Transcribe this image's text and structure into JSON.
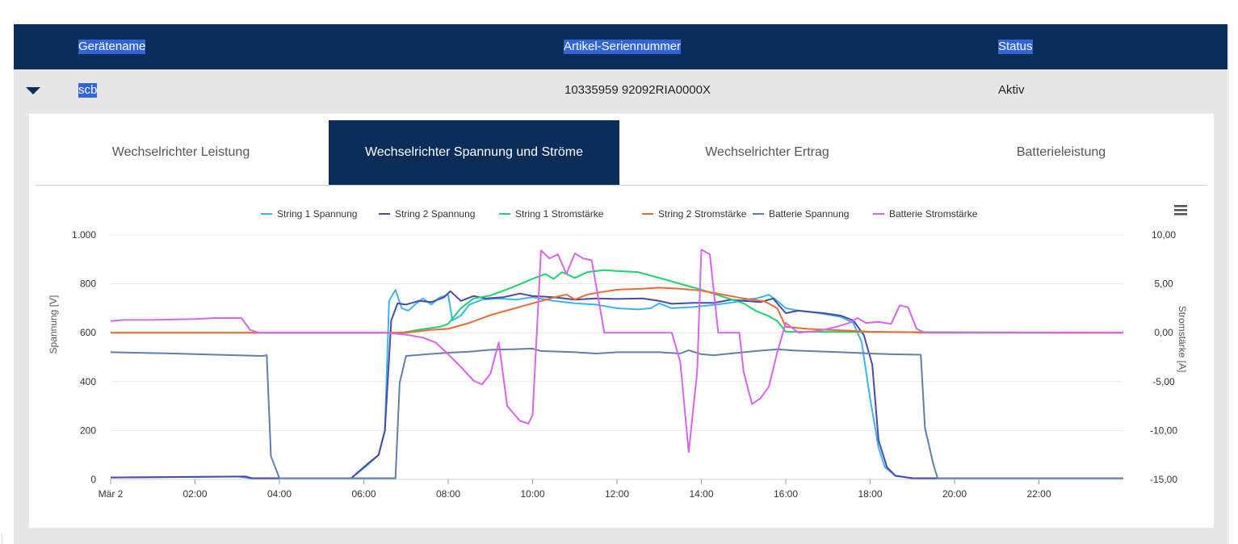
{
  "table": {
    "headers": [
      "Gerätename",
      "Artikel-Seriennummer",
      "Status"
    ],
    "row": {
      "name": "scb",
      "serial": "10335959 92092RIA0000X",
      "status": "Aktiv"
    }
  },
  "tabs": [
    {
      "label": "Wechselrichter Leistung",
      "active": false
    },
    {
      "label": "Wechselrichter Spannung und Ströme",
      "active": true
    },
    {
      "label": "Wechselrichter Ertrag",
      "active": false
    },
    {
      "label": "Batterieleistung",
      "active": false
    }
  ],
  "chart_data": {
    "type": "line",
    "x_unit": "hours",
    "xlim": [
      0,
      24
    ],
    "x_ticks": [
      {
        "x": 0,
        "label": "Mär 2"
      },
      {
        "x": 2,
        "label": "02:00"
      },
      {
        "x": 4,
        "label": "04:00"
      },
      {
        "x": 6,
        "label": "06:00"
      },
      {
        "x": 8,
        "label": "08:00"
      },
      {
        "x": 10,
        "label": "10:00"
      },
      {
        "x": 12,
        "label": "12:00"
      },
      {
        "x": 14,
        "label": "14:00"
      },
      {
        "x": 16,
        "label": "16:00"
      },
      {
        "x": 18,
        "label": "18:00"
      },
      {
        "x": 20,
        "label": "20:00"
      },
      {
        "x": 22,
        "label": "22:00"
      }
    ],
    "y_left": {
      "label": "Spannung [V]",
      "lim": [
        0,
        1000
      ],
      "ticks": [
        {
          "v": 0,
          "label": "0"
        },
        {
          "v": 200,
          "label": "200"
        },
        {
          "v": 400,
          "label": "400"
        },
        {
          "v": 600,
          "label": "600"
        },
        {
          "v": 800,
          "label": "800"
        },
        {
          "v": 1000,
          "label": "1.000"
        }
      ]
    },
    "y_right": {
      "label": "Stromstärke [A]",
      "lim": [
        -15,
        10
      ],
      "ticks": [
        {
          "v": 10,
          "label": "10,00"
        },
        {
          "v": 5,
          "label": "5,00"
        },
        {
          "v": 0,
          "label": "0,00"
        },
        {
          "v": -5,
          "label": "-5,00"
        },
        {
          "v": -10,
          "label": "-10,00"
        },
        {
          "v": -15,
          "label": "-15,00"
        }
      ]
    },
    "grid": true,
    "legend_position": "top-center",
    "series": [
      {
        "name": "String 1 Spannung",
        "axis": "left",
        "color": "#3cb3ec",
        "points": [
          [
            0,
            8
          ],
          [
            3,
            12
          ],
          [
            3.3,
            5
          ],
          [
            5.7,
            5
          ],
          [
            6.1,
            60
          ],
          [
            6.35,
            100
          ],
          [
            6.5,
            200
          ],
          [
            6.6,
            730
          ],
          [
            6.75,
            775
          ],
          [
            6.9,
            700
          ],
          [
            7.05,
            690
          ],
          [
            7.25,
            720
          ],
          [
            7.4,
            740
          ],
          [
            7.6,
            715
          ],
          [
            7.8,
            745
          ],
          [
            8.0,
            755
          ],
          [
            8.1,
            650
          ],
          [
            8.3,
            670
          ],
          [
            8.5,
            715
          ],
          [
            8.8,
            735
          ],
          [
            9.2,
            740
          ],
          [
            9.6,
            735
          ],
          [
            10.0,
            745
          ],
          [
            10.5,
            730
          ],
          [
            11.0,
            720
          ],
          [
            11.5,
            715
          ],
          [
            12.0,
            700
          ],
          [
            12.5,
            695
          ],
          [
            12.8,
            700
          ],
          [
            13.0,
            720
          ],
          [
            13.3,
            700
          ],
          [
            13.8,
            705
          ],
          [
            14.2,
            712
          ],
          [
            14.5,
            718
          ],
          [
            14.8,
            725
          ],
          [
            15.0,
            735
          ],
          [
            15.3,
            740
          ],
          [
            15.5,
            750
          ],
          [
            15.6,
            755
          ],
          [
            15.8,
            730
          ],
          [
            16.0,
            700
          ],
          [
            16.3,
            690
          ],
          [
            16.8,
            680
          ],
          [
            17.3,
            665
          ],
          [
            17.6,
            640
          ],
          [
            17.8,
            560
          ],
          [
            18.0,
            330
          ],
          [
            18.2,
            130
          ],
          [
            18.35,
            50
          ],
          [
            18.6,
            15
          ],
          [
            19,
            5
          ],
          [
            24,
            5
          ]
        ]
      },
      {
        "name": "String 2 Spannung",
        "axis": "left",
        "color": "#4a48a8",
        "points": [
          [
            0,
            8
          ],
          [
            3.2,
            12
          ],
          [
            3.35,
            5
          ],
          [
            5.7,
            5
          ],
          [
            6.1,
            65
          ],
          [
            6.35,
            100
          ],
          [
            6.5,
            200
          ],
          [
            6.65,
            650
          ],
          [
            6.8,
            720
          ],
          [
            7.0,
            715
          ],
          [
            7.3,
            730
          ],
          [
            7.6,
            725
          ],
          [
            7.9,
            745
          ],
          [
            8.05,
            770
          ],
          [
            8.3,
            730
          ],
          [
            8.6,
            750
          ],
          [
            8.9,
            740
          ],
          [
            9.3,
            745
          ],
          [
            9.7,
            760
          ],
          [
            10.0,
            750
          ],
          [
            10.5,
            745
          ],
          [
            11.0,
            735
          ],
          [
            11.5,
            740
          ],
          [
            12.0,
            738
          ],
          [
            12.6,
            740
          ],
          [
            13.0,
            730
          ],
          [
            13.3,
            718
          ],
          [
            13.8,
            722
          ],
          [
            14.3,
            722
          ],
          [
            14.7,
            735
          ],
          [
            15.0,
            730
          ],
          [
            15.4,
            725
          ],
          [
            15.7,
            740
          ],
          [
            16.0,
            680
          ],
          [
            16.3,
            690
          ],
          [
            16.9,
            680
          ],
          [
            17.3,
            670
          ],
          [
            17.6,
            650
          ],
          [
            17.85,
            590
          ],
          [
            18.05,
            470
          ],
          [
            18.2,
            160
          ],
          [
            18.4,
            50
          ],
          [
            18.6,
            15
          ],
          [
            19,
            5
          ],
          [
            24,
            5
          ]
        ]
      },
      {
        "name": "String 1 Stromstärke",
        "axis": "right",
        "color": "#1fd06e",
        "points": [
          [
            0,
            0
          ],
          [
            6.9,
            0
          ],
          [
            7.3,
            0.3
          ],
          [
            7.8,
            0.6
          ],
          [
            8.0,
            0.9
          ],
          [
            8.3,
            2.5
          ],
          [
            8.6,
            3.5
          ],
          [
            9.0,
            3.8
          ],
          [
            9.5,
            4.6
          ],
          [
            10.0,
            5.5
          ],
          [
            10.3,
            6.0
          ],
          [
            10.5,
            5.5
          ],
          [
            10.7,
            6.2
          ],
          [
            11.0,
            5.6
          ],
          [
            11.3,
            6.2
          ],
          [
            11.7,
            6.4
          ],
          [
            12.0,
            6.3
          ],
          [
            12.5,
            6.2
          ],
          [
            13.0,
            5.6
          ],
          [
            13.5,
            5.0
          ],
          [
            14.0,
            4.4
          ],
          [
            14.5,
            3.7
          ],
          [
            15.0,
            3.0
          ],
          [
            15.3,
            2.2
          ],
          [
            15.6,
            1.7
          ],
          [
            15.8,
            1.2
          ],
          [
            16.0,
            0.1
          ],
          [
            24,
            0
          ]
        ]
      },
      {
        "name": "String 2 Stromstärke",
        "axis": "right",
        "color": "#ef6a33",
        "points": [
          [
            0,
            0
          ],
          [
            7.0,
            0
          ],
          [
            7.6,
            0.3
          ],
          [
            8.0,
            0.4
          ],
          [
            8.5,
            1.0
          ],
          [
            9.0,
            1.8
          ],
          [
            9.5,
            2.4
          ],
          [
            10.0,
            3.0
          ],
          [
            10.5,
            3.6
          ],
          [
            10.8,
            3.9
          ],
          [
            11.0,
            3.4
          ],
          [
            11.3,
            3.9
          ],
          [
            11.7,
            4.2
          ],
          [
            12.0,
            4.4
          ],
          [
            12.6,
            4.5
          ],
          [
            13.0,
            4.6
          ],
          [
            13.5,
            4.5
          ],
          [
            14.0,
            4.3
          ],
          [
            14.5,
            3.9
          ],
          [
            15.0,
            3.5
          ],
          [
            15.5,
            3.2
          ],
          [
            15.8,
            2.5
          ],
          [
            16.0,
            0.6
          ],
          [
            16.5,
            0.4
          ],
          [
            17.0,
            0.3
          ],
          [
            17.5,
            0.2
          ],
          [
            18.0,
            0.1
          ],
          [
            19.0,
            0.05
          ],
          [
            19.2,
            0
          ],
          [
            24,
            0
          ]
        ]
      },
      {
        "name": "Batterie Spannung",
        "axis": "left",
        "color": "#5f7fa8",
        "points": [
          [
            0,
            520
          ],
          [
            1.5,
            515
          ],
          [
            2.5,
            510
          ],
          [
            3.6,
            505
          ],
          [
            3.7,
            508
          ],
          [
            3.8,
            95
          ],
          [
            4.0,
            5
          ],
          [
            6.6,
            5
          ],
          [
            6.75,
            5
          ],
          [
            6.85,
            395
          ],
          [
            7.0,
            505
          ],
          [
            7.5,
            512
          ],
          [
            8.0,
            518
          ],
          [
            8.5,
            522
          ],
          [
            9.0,
            530
          ],
          [
            9.5,
            532
          ],
          [
            10.0,
            535
          ],
          [
            10.2,
            525
          ],
          [
            11.0,
            520
          ],
          [
            11.5,
            515
          ],
          [
            12.0,
            520
          ],
          [
            13.0,
            520
          ],
          [
            13.5,
            515
          ],
          [
            13.7,
            528
          ],
          [
            14.0,
            512
          ],
          [
            14.3,
            508
          ],
          [
            14.7,
            515
          ],
          [
            15.3,
            525
          ],
          [
            15.8,
            532
          ],
          [
            16.2,
            527
          ],
          [
            17.0,
            522
          ],
          [
            17.6,
            518
          ],
          [
            18.0,
            515
          ],
          [
            18.5,
            512
          ],
          [
            19.2,
            510
          ],
          [
            19.3,
            210
          ],
          [
            19.5,
            60
          ],
          [
            19.6,
            5
          ],
          [
            24,
            5
          ]
        ]
      },
      {
        "name": "Batterie Stromstärke",
        "axis": "right",
        "color": "#d864eb",
        "points": [
          [
            0,
            1.2
          ],
          [
            0.3,
            1.3
          ],
          [
            1.0,
            1.3
          ],
          [
            2.0,
            1.4
          ],
          [
            2.5,
            1.5
          ],
          [
            3.1,
            1.5
          ],
          [
            3.3,
            0.3
          ],
          [
            3.5,
            0
          ],
          [
            6.5,
            0
          ],
          [
            7.0,
            -0.2
          ],
          [
            7.4,
            -0.5
          ],
          [
            7.7,
            -1.0
          ],
          [
            8.0,
            -2.2
          ],
          [
            8.3,
            -3.5
          ],
          [
            8.6,
            -4.9
          ],
          [
            8.8,
            -5.3
          ],
          [
            9.0,
            -4.2
          ],
          [
            9.2,
            -1.0
          ],
          [
            9.4,
            -7.5
          ],
          [
            9.7,
            -9.0
          ],
          [
            9.9,
            -9.3
          ],
          [
            10.0,
            -8.4
          ],
          [
            10.2,
            8.4
          ],
          [
            10.4,
            7.6
          ],
          [
            10.6,
            8.0
          ],
          [
            10.8,
            6.0
          ],
          [
            11.0,
            8.1
          ],
          [
            11.2,
            7.6
          ],
          [
            11.4,
            7.4
          ],
          [
            11.7,
            0
          ],
          [
            13.0,
            0
          ],
          [
            13.3,
            0
          ],
          [
            13.5,
            -3.0
          ],
          [
            13.7,
            -12.2
          ],
          [
            13.9,
            -4.0
          ],
          [
            14.0,
            8.5
          ],
          [
            14.2,
            8.0
          ],
          [
            14.4,
            0
          ],
          [
            14.9,
            0
          ],
          [
            15.0,
            -4.0
          ],
          [
            15.2,
            -7.3
          ],
          [
            15.4,
            -6.7
          ],
          [
            15.6,
            -5.5
          ],
          [
            15.8,
            -2.0
          ],
          [
            16.0,
            1.0
          ],
          [
            16.3,
            0
          ],
          [
            16.8,
            0.2
          ],
          [
            17.2,
            0.6
          ],
          [
            17.5,
            1.0
          ],
          [
            17.7,
            1.5
          ],
          [
            17.9,
            1.0
          ],
          [
            18.2,
            1.1
          ],
          [
            18.5,
            0.9
          ],
          [
            18.7,
            2.8
          ],
          [
            18.9,
            2.6
          ],
          [
            19.1,
            0.4
          ],
          [
            19.3,
            0
          ],
          [
            24,
            0
          ]
        ]
      }
    ]
  }
}
